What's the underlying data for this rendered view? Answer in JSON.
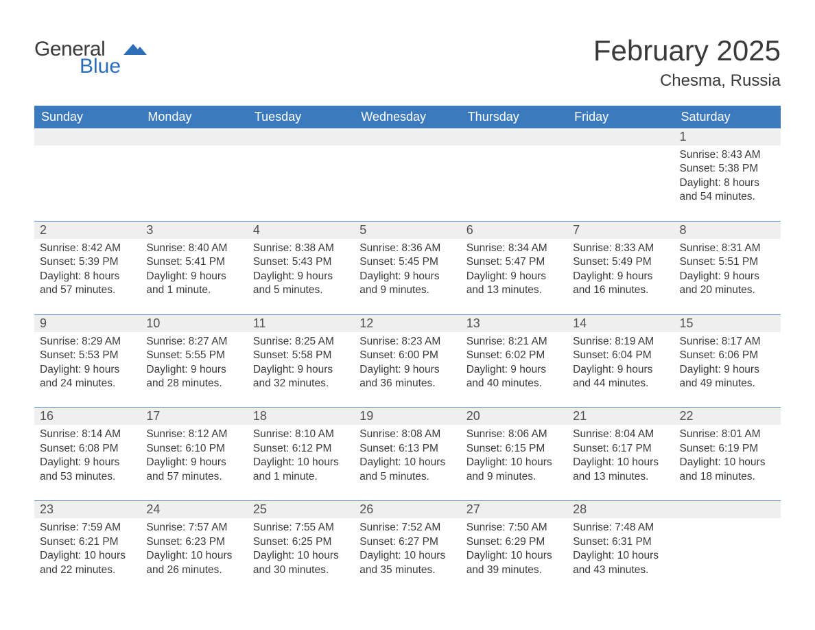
{
  "logo": {
    "word1": "General",
    "word2": "Blue"
  },
  "title": "February 2025",
  "location": "Chesma, Russia",
  "colors": {
    "header_bg": "#3b7bbd",
    "header_text": "#ffffff",
    "week_border": "#6da0cf",
    "daynum_bg": "#efefef",
    "text": "#3a3a3a",
    "logo_blue": "#2c6fb8"
  },
  "days_of_week": [
    "Sunday",
    "Monday",
    "Tuesday",
    "Wednesday",
    "Thursday",
    "Friday",
    "Saturday"
  ],
  "weeks": [
    [
      {
        "blank": true
      },
      {
        "blank": true
      },
      {
        "blank": true
      },
      {
        "blank": true
      },
      {
        "blank": true
      },
      {
        "blank": true
      },
      {
        "n": "1",
        "sunrise": "Sunrise: 8:43 AM",
        "sunset": "Sunset: 5:38 PM",
        "daylight": "Daylight: 8 hours and 54 minutes."
      }
    ],
    [
      {
        "n": "2",
        "sunrise": "Sunrise: 8:42 AM",
        "sunset": "Sunset: 5:39 PM",
        "daylight": "Daylight: 8 hours and 57 minutes."
      },
      {
        "n": "3",
        "sunrise": "Sunrise: 8:40 AM",
        "sunset": "Sunset: 5:41 PM",
        "daylight": "Daylight: 9 hours and 1 minute."
      },
      {
        "n": "4",
        "sunrise": "Sunrise: 8:38 AM",
        "sunset": "Sunset: 5:43 PM",
        "daylight": "Daylight: 9 hours and 5 minutes."
      },
      {
        "n": "5",
        "sunrise": "Sunrise: 8:36 AM",
        "sunset": "Sunset: 5:45 PM",
        "daylight": "Daylight: 9 hours and 9 minutes."
      },
      {
        "n": "6",
        "sunrise": "Sunrise: 8:34 AM",
        "sunset": "Sunset: 5:47 PM",
        "daylight": "Daylight: 9 hours and 13 minutes."
      },
      {
        "n": "7",
        "sunrise": "Sunrise: 8:33 AM",
        "sunset": "Sunset: 5:49 PM",
        "daylight": "Daylight: 9 hours and 16 minutes."
      },
      {
        "n": "8",
        "sunrise": "Sunrise: 8:31 AM",
        "sunset": "Sunset: 5:51 PM",
        "daylight": "Daylight: 9 hours and 20 minutes."
      }
    ],
    [
      {
        "n": "9",
        "sunrise": "Sunrise: 8:29 AM",
        "sunset": "Sunset: 5:53 PM",
        "daylight": "Daylight: 9 hours and 24 minutes."
      },
      {
        "n": "10",
        "sunrise": "Sunrise: 8:27 AM",
        "sunset": "Sunset: 5:55 PM",
        "daylight": "Daylight: 9 hours and 28 minutes."
      },
      {
        "n": "11",
        "sunrise": "Sunrise: 8:25 AM",
        "sunset": "Sunset: 5:58 PM",
        "daylight": "Daylight: 9 hours and 32 minutes."
      },
      {
        "n": "12",
        "sunrise": "Sunrise: 8:23 AM",
        "sunset": "Sunset: 6:00 PM",
        "daylight": "Daylight: 9 hours and 36 minutes."
      },
      {
        "n": "13",
        "sunrise": "Sunrise: 8:21 AM",
        "sunset": "Sunset: 6:02 PM",
        "daylight": "Daylight: 9 hours and 40 minutes."
      },
      {
        "n": "14",
        "sunrise": "Sunrise: 8:19 AM",
        "sunset": "Sunset: 6:04 PM",
        "daylight": "Daylight: 9 hours and 44 minutes."
      },
      {
        "n": "15",
        "sunrise": "Sunrise: 8:17 AM",
        "sunset": "Sunset: 6:06 PM",
        "daylight": "Daylight: 9 hours and 49 minutes."
      }
    ],
    [
      {
        "n": "16",
        "sunrise": "Sunrise: 8:14 AM",
        "sunset": "Sunset: 6:08 PM",
        "daylight": "Daylight: 9 hours and 53 minutes."
      },
      {
        "n": "17",
        "sunrise": "Sunrise: 8:12 AM",
        "sunset": "Sunset: 6:10 PM",
        "daylight": "Daylight: 9 hours and 57 minutes."
      },
      {
        "n": "18",
        "sunrise": "Sunrise: 8:10 AM",
        "sunset": "Sunset: 6:12 PM",
        "daylight": "Daylight: 10 hours and 1 minute."
      },
      {
        "n": "19",
        "sunrise": "Sunrise: 8:08 AM",
        "sunset": "Sunset: 6:13 PM",
        "daylight": "Daylight: 10 hours and 5 minutes."
      },
      {
        "n": "20",
        "sunrise": "Sunrise: 8:06 AM",
        "sunset": "Sunset: 6:15 PM",
        "daylight": "Daylight: 10 hours and 9 minutes."
      },
      {
        "n": "21",
        "sunrise": "Sunrise: 8:04 AM",
        "sunset": "Sunset: 6:17 PM",
        "daylight": "Daylight: 10 hours and 13 minutes."
      },
      {
        "n": "22",
        "sunrise": "Sunrise: 8:01 AM",
        "sunset": "Sunset: 6:19 PM",
        "daylight": "Daylight: 10 hours and 18 minutes."
      }
    ],
    [
      {
        "n": "23",
        "sunrise": "Sunrise: 7:59 AM",
        "sunset": "Sunset: 6:21 PM",
        "daylight": "Daylight: 10 hours and 22 minutes."
      },
      {
        "n": "24",
        "sunrise": "Sunrise: 7:57 AM",
        "sunset": "Sunset: 6:23 PM",
        "daylight": "Daylight: 10 hours and 26 minutes."
      },
      {
        "n": "25",
        "sunrise": "Sunrise: 7:55 AM",
        "sunset": "Sunset: 6:25 PM",
        "daylight": "Daylight: 10 hours and 30 minutes."
      },
      {
        "n": "26",
        "sunrise": "Sunrise: 7:52 AM",
        "sunset": "Sunset: 6:27 PM",
        "daylight": "Daylight: 10 hours and 35 minutes."
      },
      {
        "n": "27",
        "sunrise": "Sunrise: 7:50 AM",
        "sunset": "Sunset: 6:29 PM",
        "daylight": "Daylight: 10 hours and 39 minutes."
      },
      {
        "n": "28",
        "sunrise": "Sunrise: 7:48 AM",
        "sunset": "Sunset: 6:31 PM",
        "daylight": "Daylight: 10 hours and 43 minutes."
      },
      {
        "blank": true
      }
    ]
  ]
}
